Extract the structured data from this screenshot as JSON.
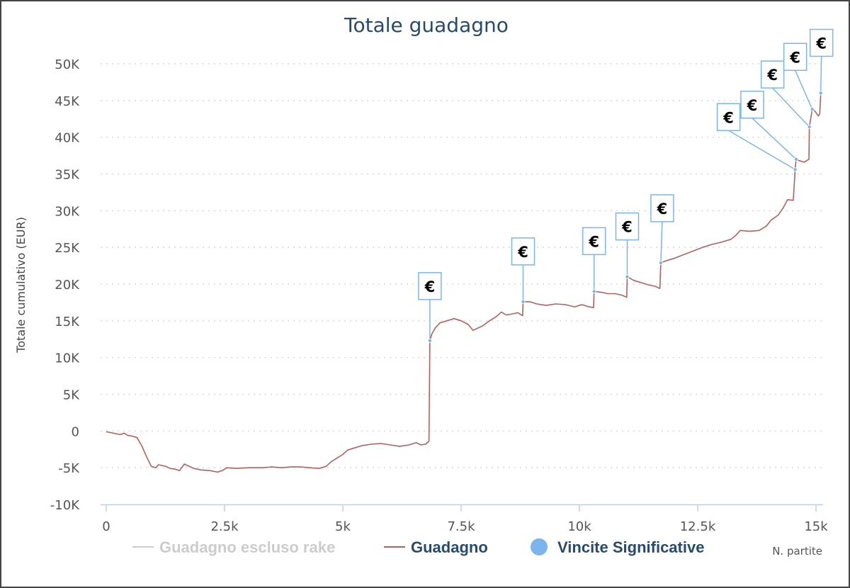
{
  "chart_data": {
    "type": "line",
    "title": "Totale guadagno",
    "ylabel": "Totale cumulativo (EUR)",
    "xlabel": "N. partite",
    "ylim": [
      -10000,
      50000
    ],
    "xlim": [
      0,
      15000
    ],
    "y_ticks": [
      {
        "value": 50000,
        "label": "50K"
      },
      {
        "value": 45000,
        "label": "45K"
      },
      {
        "value": 40000,
        "label": "40K"
      },
      {
        "value": 35000,
        "label": "35K"
      },
      {
        "value": 30000,
        "label": "30K"
      },
      {
        "value": 25000,
        "label": "25K"
      },
      {
        "value": 20000,
        "label": "20K"
      },
      {
        "value": 15000,
        "label": "15K"
      },
      {
        "value": 10000,
        "label": "10K"
      },
      {
        "value": 5000,
        "label": "5K"
      },
      {
        "value": 0,
        "label": "0"
      },
      {
        "value": -5000,
        "label": "-5K"
      },
      {
        "value": -10000,
        "label": "-10K"
      }
    ],
    "x_ticks": [
      {
        "value": 0,
        "label": "0"
      },
      {
        "value": 2500,
        "label": "2.5k"
      },
      {
        "value": 5000,
        "label": "5k"
      },
      {
        "value": 7500,
        "label": "7.5k"
      },
      {
        "value": 10000,
        "label": "10k"
      },
      {
        "value": 12500,
        "label": "12.5k"
      },
      {
        "value": 15000,
        "label": "15k"
      }
    ],
    "grid": "horizontal dotted",
    "legend_position": "bottom",
    "legend": [
      {
        "label": "Guadagno escluso rake",
        "color": "#cccccc",
        "kind": "line",
        "visible": false
      },
      {
        "label": "Guadagno",
        "color": "#b5605f",
        "kind": "line",
        "visible": true
      },
      {
        "label": "Vincite Significative",
        "color": "#7cb5ec",
        "kind": "marker",
        "visible": true
      }
    ],
    "series": [
      {
        "name": "Guadagno",
        "color": "#b5605f",
        "points": [
          [
            0,
            -100
          ],
          [
            150,
            -300
          ],
          [
            300,
            -500
          ],
          [
            380,
            -300
          ],
          [
            450,
            -600
          ],
          [
            550,
            -700
          ],
          [
            650,
            -900
          ],
          [
            750,
            -2000
          ],
          [
            850,
            -3500
          ],
          [
            950,
            -4800
          ],
          [
            1050,
            -5000
          ],
          [
            1100,
            -4600
          ],
          [
            1250,
            -4800
          ],
          [
            1350,
            -5100
          ],
          [
            1450,
            -5200
          ],
          [
            1550,
            -5400
          ],
          [
            1650,
            -4500
          ],
          [
            1750,
            -4800
          ],
          [
            1850,
            -5100
          ],
          [
            2000,
            -5300
          ],
          [
            2200,
            -5400
          ],
          [
            2350,
            -5600
          ],
          [
            2450,
            -5400
          ],
          [
            2550,
            -5000
          ],
          [
            2750,
            -5100
          ],
          [
            3000,
            -5000
          ],
          [
            3300,
            -5000
          ],
          [
            3500,
            -4900
          ],
          [
            3700,
            -5000
          ],
          [
            3900,
            -4900
          ],
          [
            4100,
            -4900
          ],
          [
            4300,
            -5000
          ],
          [
            4500,
            -5100
          ],
          [
            4650,
            -4800
          ],
          [
            4750,
            -4200
          ],
          [
            4900,
            -3600
          ],
          [
            5000,
            -3200
          ],
          [
            5100,
            -2600
          ],
          [
            5250,
            -2300
          ],
          [
            5400,
            -2000
          ],
          [
            5600,
            -1800
          ],
          [
            5800,
            -1700
          ],
          [
            6000,
            -1900
          ],
          [
            6200,
            -2100
          ],
          [
            6400,
            -1900
          ],
          [
            6550,
            -1600
          ],
          [
            6650,
            -1900
          ],
          [
            6750,
            -1800
          ],
          [
            6820,
            -1400
          ],
          [
            6840,
            12300
          ],
          [
            6880,
            13200
          ],
          [
            6950,
            14000
          ],
          [
            7050,
            14700
          ],
          [
            7200,
            15000
          ],
          [
            7350,
            15300
          ],
          [
            7500,
            15000
          ],
          [
            7650,
            14500
          ],
          [
            7750,
            13700
          ],
          [
            7850,
            14000
          ],
          [
            7950,
            14300
          ],
          [
            8100,
            15000
          ],
          [
            8250,
            15600
          ],
          [
            8350,
            16200
          ],
          [
            8450,
            15800
          ],
          [
            8550,
            15900
          ],
          [
            8700,
            16100
          ],
          [
            8800,
            15700
          ],
          [
            8810,
            17600
          ],
          [
            8950,
            17600
          ],
          [
            9100,
            17300
          ],
          [
            9300,
            17100
          ],
          [
            9500,
            17300
          ],
          [
            9700,
            17200
          ],
          [
            9900,
            16900
          ],
          [
            10050,
            17200
          ],
          [
            10200,
            16900
          ],
          [
            10300,
            16800
          ],
          [
            10310,
            19000
          ],
          [
            10450,
            18900
          ],
          [
            10600,
            18700
          ],
          [
            10750,
            18700
          ],
          [
            10900,
            18500
          ],
          [
            11000,
            18200
          ],
          [
            11010,
            21000
          ],
          [
            11150,
            20500
          ],
          [
            11300,
            20200
          ],
          [
            11450,
            19900
          ],
          [
            11600,
            19700
          ],
          [
            11700,
            19400
          ],
          [
            11720,
            22900
          ],
          [
            11850,
            23200
          ],
          [
            12000,
            23500
          ],
          [
            12200,
            24000
          ],
          [
            12400,
            24500
          ],
          [
            12600,
            25000
          ],
          [
            12800,
            25400
          ],
          [
            13000,
            25700
          ],
          [
            13200,
            26100
          ],
          [
            13300,
            26600
          ],
          [
            13400,
            27300
          ],
          [
            13600,
            27200
          ],
          [
            13800,
            27300
          ],
          [
            13950,
            27900
          ],
          [
            14050,
            28700
          ],
          [
            14200,
            29400
          ],
          [
            14300,
            30300
          ],
          [
            14400,
            31500
          ],
          [
            14520,
            31400
          ],
          [
            14560,
            35600
          ],
          [
            14580,
            37000
          ],
          [
            14650,
            36800
          ],
          [
            14750,
            36600
          ],
          [
            14850,
            37000
          ],
          [
            14860,
            41400
          ],
          [
            14920,
            43800
          ],
          [
            14970,
            43600
          ],
          [
            15050,
            42900
          ],
          [
            15080,
            43200
          ],
          [
            15100,
            46000
          ],
          [
            15120,
            46000
          ]
        ]
      }
    ],
    "significant_wins": [
      {
        "x": 6840,
        "y": 12300,
        "flag": "€"
      },
      {
        "x": 8810,
        "y": 17600,
        "flag": "€"
      },
      {
        "x": 10310,
        "y": 19000,
        "flag": "€"
      },
      {
        "x": 11010,
        "y": 21000,
        "flag": "€"
      },
      {
        "x": 11720,
        "y": 22900,
        "flag": "€"
      },
      {
        "x": 14560,
        "y": 35600,
        "flag": "€"
      },
      {
        "x": 14580,
        "y": 37000,
        "flag": "€"
      },
      {
        "x": 14860,
        "y": 41400,
        "flag": "€"
      },
      {
        "x": 14920,
        "y": 43800,
        "flag": "€"
      },
      {
        "x": 15100,
        "y": 46000,
        "flag": "€"
      }
    ]
  }
}
